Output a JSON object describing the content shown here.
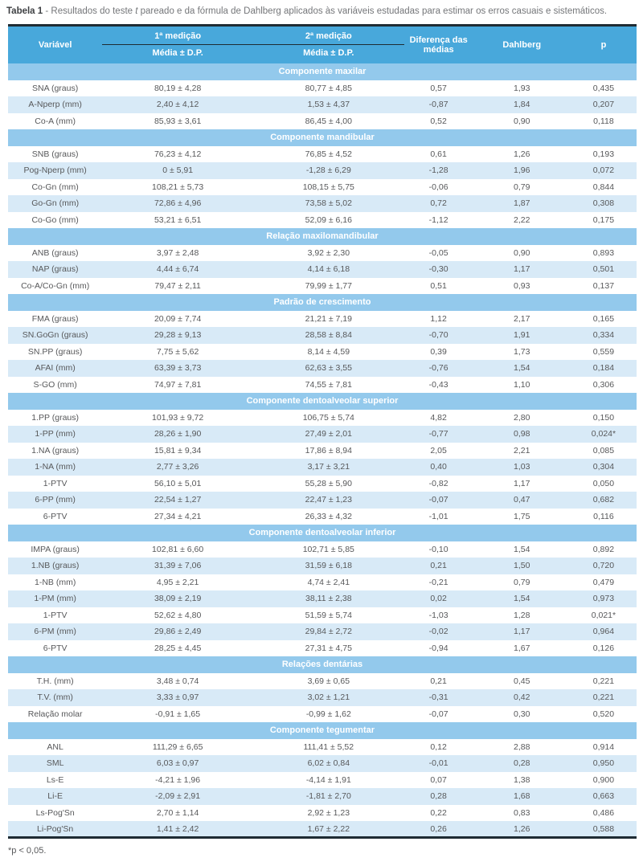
{
  "title": {
    "label": "Tabela 1",
    "pre": " - Resultados do teste ",
    "italic": "t",
    "post": " pareado e da fórmula de Dahlberg aplicados às variáveis estudadas para estimar os erros casuais e sistemáticos."
  },
  "table": {
    "columns": {
      "variavel": "Variável",
      "m1": "1ª medição",
      "m2": "2ª medição",
      "sub": "Média ± D.P.",
      "diff": "Diferença das médias",
      "dahlberg": "Dahlberg",
      "p": "p"
    },
    "sections": [
      {
        "header": "Componente maxilar",
        "rows": [
          [
            "SNA (graus)",
            "80,19 ± 4,28",
            "80,77 ± 4,85",
            "0,57",
            "1,93",
            "0,435"
          ],
          [
            "A-Nperp (mm)",
            "2,40 ± 4,12",
            "1,53 ± 4,37",
            "-0,87",
            "1,84",
            "0,207"
          ],
          [
            "Co-A (mm)",
            "85,93 ± 3,61",
            "86,45 ± 4,00",
            "0,52",
            "0,90",
            "0,118"
          ]
        ]
      },
      {
        "header": "Componente mandibular",
        "rows": [
          [
            "SNB (graus)",
            "76,23 ± 4,12",
            "76,85 ± 4,52",
            "0,61",
            "1,26",
            "0,193"
          ],
          [
            "Pog-Nperp (mm)",
            "0 ± 5,91",
            "-1,28 ± 6,29",
            "-1,28",
            "1,96",
            "0,072"
          ],
          [
            "Co-Gn (mm)",
            "108,21 ± 5,73",
            "108,15 ± 5,75",
            "-0,06",
            "0,79",
            "0,844"
          ],
          [
            "Go-Gn (mm)",
            "72,86 ± 4,96",
            "73,58 ± 5,02",
            "0,72",
            "1,87",
            "0,308"
          ],
          [
            "Co-Go (mm)",
            "53,21 ± 6,51",
            "52,09 ± 6,16",
            "-1,12",
            "2,22",
            "0,175"
          ]
        ]
      },
      {
        "header": "Relação maxilomandibular",
        "rows": [
          [
            "ANB (graus)",
            "3,97 ± 2,48",
            "3,92 ± 2,30",
            "-0,05",
            "0,90",
            "0,893"
          ],
          [
            "NAP (graus)",
            "4,44 ± 6,74",
            "4,14 ± 6,18",
            "-0,30",
            "1,17",
            "0,501"
          ],
          [
            "Co-A/Co-Gn (mm)",
            "79,47 ± 2,11",
            "79,99 ± 1,77",
            "0,51",
            "0,93",
            "0,137"
          ]
        ]
      },
      {
        "header": "Padrão de crescimento",
        "rows": [
          [
            "FMA (graus)",
            "20,09 ± 7,74",
            "21,21 ± 7,19",
            "1,12",
            "2,17",
            "0,165"
          ],
          [
            "SN.GoGn (graus)",
            "29,28 ± 9,13",
            "28,58 ± 8,84",
            "-0,70",
            "1,91",
            "0,334"
          ],
          [
            "SN.PP (graus)",
            "7,75 ± 5,62",
            "8,14 ± 4,59",
            "0,39",
            "1,73",
            "0,559"
          ],
          [
            "AFAI (mm)",
            "63,39 ± 3,73",
            "62,63 ± 3,55",
            "-0,76",
            "1,54",
            "0,184"
          ],
          [
            "S-GO (mm)",
            "74,97 ± 7,81",
            "74,55 ± 7,81",
            "-0,43",
            "1,10",
            "0,306"
          ]
        ]
      },
      {
        "header": "Componente dentoalveolar superior",
        "rows": [
          [
            "1.PP (graus)",
            "101,93 ± 9,72",
            "106,75 ± 5,74",
            "4,82",
            "2,80",
            "0,150"
          ],
          [
            "1-PP (mm)",
            "28,26 ± 1,90",
            "27,49 ± 2,01",
            "-0,77",
            "0,98",
            "0,024*"
          ],
          [
            "1.NA (graus)",
            "15,81 ± 9,34",
            "17,86 ± 8,94",
            "2,05",
            "2,21",
            "0,085"
          ],
          [
            "1-NA (mm)",
            "2,77 ± 3,26",
            "3,17 ± 3,21",
            "0,40",
            "1,03",
            "0,304"
          ],
          [
            "1-PTV",
            "56,10 ± 5,01",
            "55,28 ± 5,90",
            "-0,82",
            "1,17",
            "0,050"
          ],
          [
            "6-PP (mm)",
            "22,54 ± 1,27",
            "22,47 ± 1,23",
            "-0,07",
            "0,47",
            "0,682"
          ],
          [
            "6-PTV",
            "27,34 ± 4,21",
            "26,33 ± 4,32",
            "-1,01",
            "1,75",
            "0,116"
          ]
        ]
      },
      {
        "header": "Componente dentoalveolar inferior",
        "rows": [
          [
            "IMPA (graus)",
            "102,81 ± 6,60",
            "102,71 ± 5,85",
            "-0,10",
            "1,54",
            "0,892"
          ],
          [
            "1.NB (graus)",
            "31,39 ± 7,06",
            "31,59 ± 6,18",
            "0,21",
            "1,50",
            "0,720"
          ],
          [
            "1-NB (mm)",
            "4,95 ± 2,21",
            "4,74 ± 2,41",
            "-0,21",
            "0,79",
            "0,479"
          ],
          [
            "1-PM (mm)",
            "38,09 ± 2,19",
            "38,11 ± 2,38",
            "0,02",
            "1,54",
            "0,973"
          ],
          [
            "1-PTV",
            "52,62 ± 4,80",
            "51,59 ± 5,74",
            "-1,03",
            "1,28",
            "0,021*"
          ],
          [
            "6-PM (mm)",
            "29,86 ± 2,49",
            "29,84 ± 2,72",
            "-0,02",
            "1,17",
            "0,964"
          ],
          [
            "6-PTV",
            "28,25 ± 4,45",
            "27,31 ± 4,75",
            "-0,94",
            "1,67",
            "0,126"
          ]
        ]
      },
      {
        "header": "Relações dentárias",
        "rows": [
          [
            "T.H. (mm)",
            "3,48 ± 0,74",
            "3,69 ± 0,65",
            "0,21",
            "0,45",
            "0,221"
          ],
          [
            "T.V. (mm)",
            "3,33 ± 0,97",
            "3,02 ± 1,21",
            "-0,31",
            "0,42",
            "0,221"
          ],
          [
            "Relação molar",
            "-0,91 ± 1,65",
            "-0,99 ± 1,62",
            "-0,07",
            "0,30",
            "0,520"
          ]
        ]
      },
      {
        "header": "Componente tegumentar",
        "rows": [
          [
            "ANL",
            "111,29 ± 6,65",
            "111,41 ± 5,52",
            "0,12",
            "2,88",
            "0,914"
          ],
          [
            "SML",
            "6,03 ± 0,97",
            "6,02 ± 0,84",
            "-0,01",
            "0,28",
            "0,950"
          ],
          [
            "Ls-E",
            "-4,21 ± 1,96",
            "-4,14 ± 1,91",
            "0,07",
            "1,38",
            "0,900"
          ],
          [
            "Li-E",
            "-2,09 ± 2,91",
            "-1,81 ± 2,70",
            "0,28",
            "1,68",
            "0,663"
          ],
          [
            "Ls-Pog'Sn",
            "2,70 ± 1,14",
            "2,92 ± 1,23",
            "0,22",
            "0,83",
            "0,486"
          ],
          [
            "Li-Pog'Sn",
            "1,41 ± 2,42",
            "1,67 ± 2,22",
            "0,26",
            "1,26",
            "0,588"
          ]
        ]
      }
    ]
  },
  "footnote": "*p < 0,05.",
  "colors": {
    "header_blue": "#48A8DB",
    "section_blue": "#93C9EC",
    "row_alt_blue": "#D8EAF7",
    "dark_line": "#1E2B33",
    "text_gray": "#57585A",
    "title_gray": "#747679",
    "title_dark": "#3D3F42"
  }
}
